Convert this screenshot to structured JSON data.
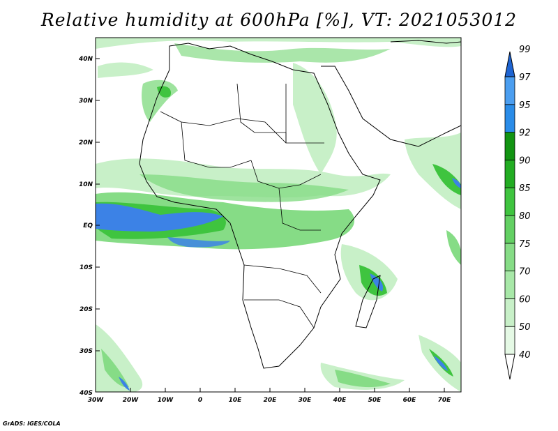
{
  "title": "Relative humidity at 600hPa [%], VT: 2021053012",
  "footer": "GrADS: IGES/COLA",
  "map": {
    "lon_range": [
      -30,
      75
    ],
    "lat_range": [
      -40,
      45
    ],
    "lat_ticks": [
      "40N",
      "30N",
      "20N",
      "10N",
      "EQ",
      "10S",
      "20S",
      "30S",
      "40S"
    ],
    "lon_ticks": [
      "30W",
      "20W",
      "10W",
      "0",
      "10E",
      "20E",
      "30E",
      "40E",
      "50E",
      "60E",
      "70E"
    ]
  },
  "colorbar": {
    "levels": [
      "40",
      "50",
      "60",
      "70",
      "75",
      "80",
      "85",
      "90",
      "92",
      "95",
      "97",
      "99"
    ],
    "colors": [
      "#ffffff",
      "#e5f9e5",
      "#c8f0c8",
      "#a8e8a8",
      "#86dc86",
      "#63d063",
      "#3fc43f",
      "#22ac22",
      "#129412",
      "#2a8ce8",
      "#4b9ef0",
      "#1e64d2"
    ]
  },
  "fills": {
    "green_light": "#c8f0c8",
    "green_mid": "#86dc86",
    "green_dark": "#3fc43f",
    "blue": "#3c82e6"
  }
}
